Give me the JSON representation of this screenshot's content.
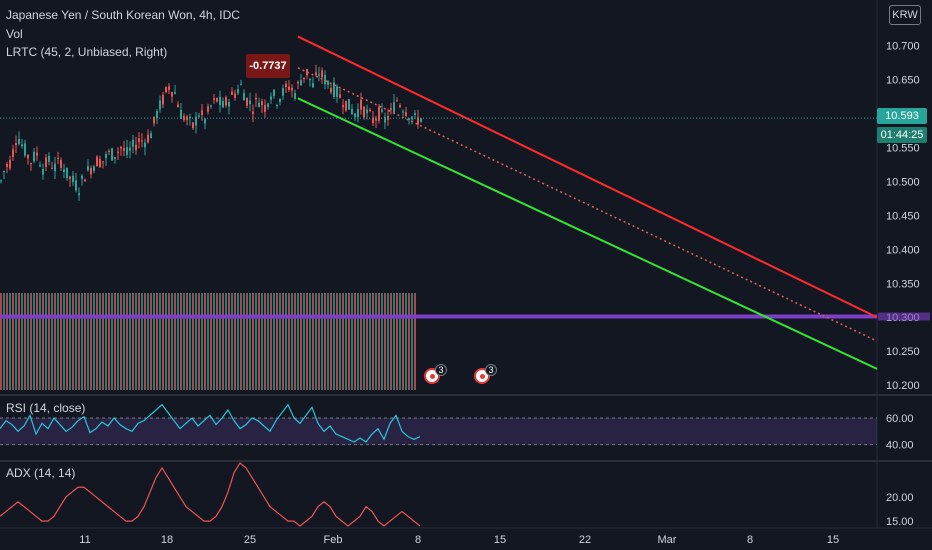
{
  "header": {
    "symbol": "Japanese Yen / South Korean Won, 4h, IDC",
    "volume": "Vol",
    "lrtc": "LRTC (45, 2, Unbiased, Right)",
    "currency": "KRW"
  },
  "annotation": "-0.7737",
  "last_price": "10.593",
  "countdown": "01:44:25",
  "events": [
    {
      "count": "3"
    },
    {
      "count": "3"
    }
  ],
  "colors": {
    "background": "#131722",
    "up": "#26a69a",
    "down": "#ef5350",
    "channel_upper": "#ff2a2a",
    "channel_lower": "#33e633",
    "channel_mid": "#e06055",
    "horizontal_line": "#7e3fc8",
    "rsi": "#26c6da",
    "rsi_band": "#7e57c2",
    "adx": "#ef5350",
    "price_tag": "#26a69a",
    "countdown_tag": "#26a69a"
  },
  "chart_data": [
    {
      "type": "candlestick",
      "title": "Japanese Yen / South Korean Won, 4h, IDC",
      "x_ticks": [
        "11",
        "18",
        "25",
        "Feb",
        "8",
        "15",
        "22",
        "Mar",
        "8",
        "15"
      ],
      "y_ticks": [
        "10.700",
        "10.650",
        "10.600",
        "10.550",
        "10.500",
        "10.450",
        "10.400",
        "10.350",
        "10.300",
        "10.250",
        "10.200"
      ],
      "ylim": [
        10.19,
        10.755
      ],
      "close_path": [
        [
          0,
          10.5
        ],
        [
          4,
          10.52
        ],
        [
          10,
          10.53
        ],
        [
          16,
          10.57
        ],
        [
          22,
          10.55
        ],
        [
          30,
          10.53
        ],
        [
          36,
          10.54
        ],
        [
          42,
          10.52
        ],
        [
          48,
          10.53
        ],
        [
          54,
          10.52
        ],
        [
          60,
          10.53
        ],
        [
          66,
          10.51
        ],
        [
          72,
          10.5
        ],
        [
          78,
          10.49
        ],
        [
          84,
          10.51
        ],
        [
          90,
          10.52
        ],
        [
          96,
          10.53
        ],
        [
          102,
          10.53
        ],
        [
          108,
          10.54
        ],
        [
          114,
          10.54
        ],
        [
          120,
          10.55
        ],
        [
          126,
          10.54
        ],
        [
          132,
          10.55
        ],
        [
          138,
          10.56
        ],
        [
          144,
          10.56
        ],
        [
          150,
          10.57
        ],
        [
          156,
          10.6
        ],
        [
          162,
          10.62
        ],
        [
          168,
          10.64
        ],
        [
          174,
          10.63
        ],
        [
          180,
          10.6
        ],
        [
          186,
          10.59
        ],
        [
          192,
          10.58
        ],
        [
          198,
          10.6
        ],
        [
          204,
          10.59
        ],
        [
          210,
          10.61
        ],
        [
          216,
          10.62
        ],
        [
          222,
          10.61
        ],
        [
          228,
          10.62
        ],
        [
          234,
          10.63
        ],
        [
          240,
          10.64
        ],
        [
          246,
          10.62
        ],
        [
          252,
          10.61
        ],
        [
          258,
          10.62
        ],
        [
          264,
          10.61
        ],
        [
          270,
          10.63
        ],
        [
          276,
          10.62
        ],
        [
          282,
          10.63
        ],
        [
          288,
          10.64
        ],
        [
          294,
          10.63
        ],
        [
          300,
          10.65
        ],
        [
          306,
          10.66
        ],
        [
          312,
          10.64
        ],
        [
          318,
          10.66
        ],
        [
          324,
          10.65
        ],
        [
          330,
          10.64
        ],
        [
          336,
          10.63
        ],
        [
          342,
          10.62
        ],
        [
          348,
          10.61
        ],
        [
          354,
          10.6
        ],
        [
          360,
          10.61
        ],
        [
          366,
          10.6
        ],
        [
          372,
          10.59
        ],
        [
          378,
          10.6
        ],
        [
          384,
          10.59
        ],
        [
          390,
          10.6
        ],
        [
          396,
          10.62
        ],
        [
          402,
          10.61
        ],
        [
          408,
          10.6
        ],
        [
          414,
          10.59
        ],
        [
          420,
          10.593
        ]
      ],
      "lrtc": {
        "start_x": 298,
        "upper": [
          10.713,
          10.3
        ],
        "middle": [
          10.667,
          10.265
        ],
        "lower": [
          10.622,
          10.224
        ]
      },
      "horizontal_level": 10.301,
      "last_price": 10.593
    },
    {
      "type": "bar",
      "title": "Vol",
      "note": "volume bars (alternating colors), solid block height"
    },
    {
      "type": "line",
      "title": "RSI (14, close)",
      "y_ticks": [
        "60.00",
        "40.00"
      ],
      "ylim": [
        30,
        75
      ],
      "band": [
        40,
        60
      ],
      "values": [
        52,
        58,
        55,
        50,
        54,
        62,
        48,
        56,
        52,
        60,
        55,
        50,
        53,
        58,
        61,
        49,
        52,
        57,
        54,
        60,
        55,
        52,
        50,
        56,
        58,
        62,
        66,
        70,
        64,
        58,
        52,
        56,
        60,
        54,
        58,
        62,
        55,
        60,
        66,
        58,
        52,
        55,
        60,
        58,
        54,
        50,
        58,
        64,
        70,
        60,
        56,
        62,
        68,
        56,
        50,
        54,
        48,
        46,
        44,
        42,
        45,
        42,
        48,
        52,
        44,
        56,
        62,
        50,
        46,
        44,
        46
      ]
    },
    {
      "type": "line",
      "title": "ADX (14, 14)",
      "y_ticks": [
        "20.00",
        "15.00"
      ],
      "ylim": [
        14,
        27
      ],
      "values": [
        16,
        17,
        18,
        19,
        18,
        17,
        16,
        15,
        15,
        16,
        18,
        20,
        21,
        22,
        22,
        21,
        20,
        19,
        18,
        17,
        16,
        15,
        15,
        16,
        18,
        21,
        24,
        26,
        24,
        22,
        20,
        18,
        17,
        16,
        15,
        15,
        16,
        18,
        21,
        25,
        27,
        26,
        24,
        22,
        20,
        18,
        17,
        16,
        15,
        15,
        14,
        15,
        16,
        18,
        19,
        18,
        16,
        15,
        14,
        15,
        16,
        18,
        17,
        15,
        14,
        15,
        16,
        17,
        16,
        15,
        14
      ]
    }
  ]
}
